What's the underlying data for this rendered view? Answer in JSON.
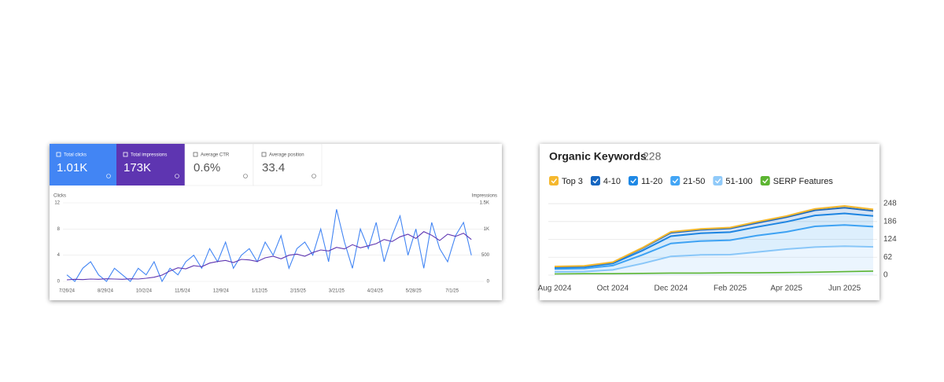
{
  "chart_data": [
    {
      "type": "line",
      "series": [
        {
          "name": "Total clicks",
          "total": "1.01K",
          "color": "#4285f4",
          "values": [
            1,
            0,
            2,
            3,
            1,
            0,
            2,
            1,
            0,
            2,
            1,
            3,
            0,
            2,
            1,
            3,
            4,
            2,
            5,
            3,
            6,
            2,
            4,
            5,
            3,
            6,
            4,
            7,
            2,
            5,
            6,
            4,
            8,
            3,
            11,
            6,
            2,
            8,
            5,
            9,
            3,
            7,
            10,
            4,
            8,
            2,
            9,
            5,
            3,
            7,
            9,
            4
          ]
        },
        {
          "name": "Total impressions",
          "total": "173K",
          "color": "#5e35b1",
          "axis": "y2",
          "values": [
            30,
            40,
            35,
            45,
            40,
            50,
            45,
            40,
            50,
            45,
            60,
            80,
            120,
            200,
            260,
            240,
            300,
            280,
            350,
            380,
            400,
            360,
            420,
            410,
            380,
            450,
            480,
            430,
            500,
            520,
            480,
            550,
            600,
            580,
            650,
            620,
            700,
            640,
            680,
            720,
            800,
            760,
            850,
            900,
            820,
            950,
            880,
            780,
            900,
            860,
            920,
            800
          ]
        }
      ],
      "metrics": [
        {
          "name": "Average CTR",
          "value": "0.6%"
        },
        {
          "name": "Average position",
          "value": "33.4"
        }
      ],
      "y_label": "Clicks",
      "y2_label": "Impressions",
      "x": [
        "2024-07-26",
        "2024-08-02",
        "2024-08-09",
        "2024-08-16",
        "2024-08-23",
        "2024-08-30",
        "2024-09-06",
        "2024-09-13",
        "2024-09-20",
        "2024-09-27",
        "2024-10-04",
        "2024-10-11",
        "2024-10-18",
        "2024-10-25",
        "2024-11-01",
        "2024-11-08",
        "2024-11-15",
        "2024-11-22",
        "2024-11-29",
        "2024-12-06",
        "2024-12-13",
        "2024-12-20",
        "2024-12-27",
        "2025-01-03",
        "2025-01-10",
        "2025-01-17",
        "2025-01-24",
        "2025-01-31",
        "2025-02-07",
        "2025-02-14",
        "2025-02-21",
        "2025-02-28",
        "2025-03-07",
        "2025-03-14",
        "2025-03-21",
        "2025-03-28",
        "2025-04-04",
        "2025-04-11",
        "2025-04-18",
        "2025-04-25",
        "2025-05-02",
        "2025-05-09",
        "2025-05-16",
        "2025-05-23",
        "2025-05-30",
        "2025-06-06",
        "2025-06-13",
        "2025-06-20",
        "2025-06-27",
        "2025-07-04",
        "2025-07-11",
        "2025-07-18"
      ],
      "xlim": [
        "2024-07-26",
        "2025-07-22"
      ],
      "xticks": [
        {
          "value": "2024-07-26",
          "label": "7/26/24"
        },
        {
          "value": "2024-08-29",
          "label": "8/29/24"
        },
        {
          "value": "2024-10-02",
          "label": "10/2/24"
        },
        {
          "value": "2024-11-05",
          "label": "11/5/24"
        },
        {
          "value": "2024-12-09",
          "label": "12/9/24"
        },
        {
          "value": "2025-01-12",
          "label": "1/12/25"
        },
        {
          "value": "2025-02-15",
          "label": "2/15/25"
        },
        {
          "value": "2025-03-21",
          "label": "3/21/25"
        },
        {
          "value": "2025-04-24",
          "label": "4/24/25"
        },
        {
          "value": "2025-05-28",
          "label": "5/28/25"
        },
        {
          "value": "2025-07-01",
          "label": "7/1/25"
        }
      ],
      "ylim": [
        0,
        12
      ],
      "yticks": [
        0,
        4,
        8,
        12
      ],
      "y2lim": [
        0,
        1500
      ],
      "y2ticks": [
        0,
        500,
        {
          "value": 1000,
          "label": "1K"
        },
        {
          "value": 1500,
          "label": "1.5K"
        }
      ],
      "grid": true
    },
    {
      "type": "area",
      "title": "Organic Keywords",
      "subtitle": "228",
      "x": [
        "2024-08",
        "2024-09",
        "2024-10",
        "2024-11",
        "2024-12",
        "2025-01",
        "2025-02",
        "2025-03",
        "2025-04",
        "2025-05",
        "2025-06",
        "2025-07"
      ],
      "xlim": [
        "2024-08",
        "2025-07"
      ],
      "xticks": [
        {
          "value": "2024-08",
          "label": "Aug 2024"
        },
        {
          "value": "2024-10",
          "label": "Oct 2024"
        },
        {
          "value": "2024-12",
          "label": "Dec 2024"
        },
        {
          "value": "2025-02",
          "label": "Feb 2025"
        },
        {
          "value": "2025-04",
          "label": "Apr 2025"
        },
        {
          "value": "2025-06",
          "label": "Jun 2025"
        }
      ],
      "ylim": [
        0,
        270
      ],
      "yticks": [
        0,
        62,
        124,
        186,
        248
      ],
      "grid": true,
      "series": [
        {
          "name": "Top 3",
          "color": "#f5b82e",
          "stack": true,
          "values": [
            1,
            1,
            1,
            2,
            3,
            3,
            3,
            4,
            4,
            5,
            6,
            5
          ]
        },
        {
          "name": "4-10",
          "color": "#1565c0",
          "stack": true,
          "values": [
            3,
            3,
            4,
            8,
            12,
            12,
            13,
            14,
            16,
            18,
            20,
            18
          ]
        },
        {
          "name": "11-20",
          "color": "#1e88e5",
          "stack": true,
          "values": [
            5,
            5,
            7,
            15,
            25,
            27,
            28,
            30,
            35,
            38,
            40,
            37
          ]
        },
        {
          "name": "21-50",
          "color": "#42a5f5",
          "stack": true,
          "values": [
            10,
            11,
            15,
            30,
            45,
            48,
            50,
            57,
            60,
            72,
            74,
            70
          ]
        },
        {
          "name": "51-100",
          "color": "#90caf9",
          "stack": true,
          "values": [
            11,
            12,
            18,
            40,
            65,
            70,
            71,
            80,
            90,
            97,
            100,
            98
          ]
        },
        {
          "name": "SERP Features",
          "color": "#5cb531",
          "stack": false,
          "values": [
            4,
            5,
            5,
            6,
            7,
            7,
            8,
            8,
            9,
            10,
            12,
            14
          ]
        }
      ]
    }
  ]
}
